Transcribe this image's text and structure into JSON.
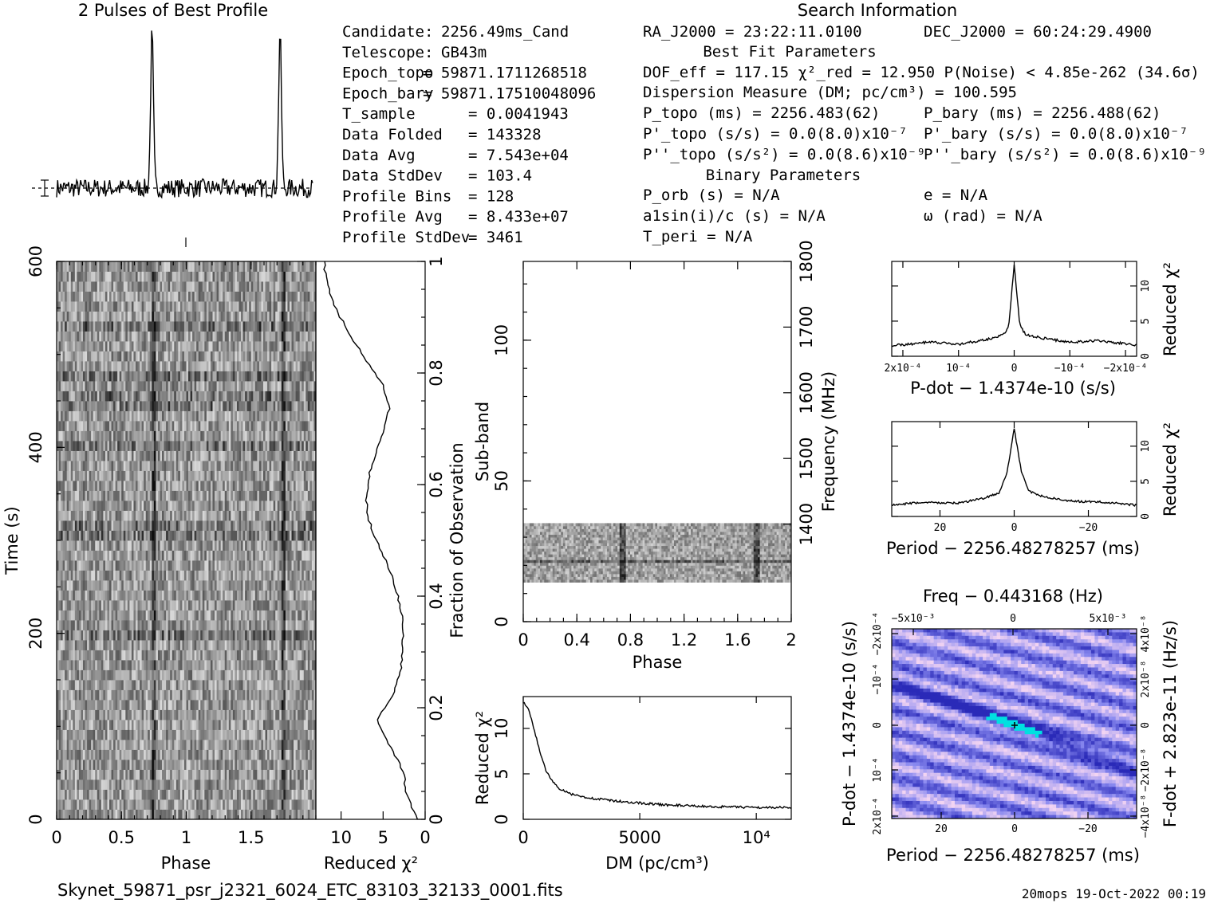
{
  "titles": {
    "profile_title": "2 Pulses of Best Profile",
    "search_title": "Search Information"
  },
  "candidate_info": [
    {
      "label": "Candidate:",
      "value": "2256.49ms_Cand"
    },
    {
      "label": "Telescope:",
      "value": "GB43m"
    },
    {
      "label": "Epoch_topo",
      "value": "= 59871.1711268518"
    },
    {
      "label": "Epoch_bary",
      "value": "= 59871.17510048096"
    },
    {
      "label": "T_sample",
      "value": "=  0.0041943"
    },
    {
      "label": "Data Folded",
      "value": "=  143328"
    },
    {
      "label": "Data Avg",
      "value": "=  7.543e+04"
    },
    {
      "label": "Data StdDev",
      "value": "=  103.4"
    },
    {
      "label": "Profile Bins",
      "value": "=  128"
    },
    {
      "label": "Profile Avg",
      "value": "=  8.433e+07"
    },
    {
      "label": "Profile StdDev",
      "value": "=  3461"
    }
  ],
  "search_info": {
    "ra": "RA_J2000 = 23:22:11.0100",
    "dec": "DEC_J2000 = 60:24:29.4900",
    "best_fit_header": "Best Fit Parameters",
    "dof": "DOF_eff = 117.15  χ²_red = 12.950  P(Noise) < 4.85e-262  (34.6σ)",
    "dm": "Dispersion Measure (DM; pc/cm³) = 100.595",
    "p_topo": "P_topo (ms) =  2256.483(62)",
    "p_bary": "P_bary (ms) =  2256.488(62)",
    "pd_topo": "P'_topo (s/s) = 0.0(8.0)x10⁻⁷",
    "pd_bary": "P'_bary (s/s) = 0.0(8.0)x10⁻⁷",
    "pdd_topo": "P''_topo (s/s²) = 0.0(8.6)x10⁻⁹",
    "pdd_bary": "P''_bary (s/s²) = 0.0(8.6)x10⁻⁹",
    "binary_header": "Binary Parameters",
    "p_orb": "P_orb (s) = N/A",
    "e": "e = N/A",
    "a1sini": "a1sin(i)/c (s) = N/A",
    "omega": "ω (rad) = N/A",
    "t_peri": "T_peri = N/A"
  },
  "footer": {
    "filename": "Skynet_59871_psr_j2321_6024_ETC_83103_32133_0001.fits",
    "stamp": "20mops 19-Oct-2022 00:19"
  },
  "colors": {
    "pd_low": "#2a2ab8",
    "pd_mid": "#8a8af0",
    "pd_high": "#f2d4f2",
    "pd_peak": "#00e0e0"
  },
  "chart_data": [
    {
      "id": "profile",
      "type": "line",
      "title": "2 Pulses of Best Profile",
      "x_range": [
        0,
        2
      ],
      "peak_phases": [
        0.745,
        1.745
      ],
      "peak_height": 1.0,
      "noise_level": 0.06
    },
    {
      "id": "time_phase",
      "type": "heatmap",
      "xlabel": "Phase",
      "ylabel": "Time (s)",
      "xlim": [
        0,
        2
      ],
      "ylim": [
        0,
        600
      ],
      "xticks": [
        "0",
        "0.5",
        "1",
        "1.5"
      ],
      "yticks": [
        "0",
        "200",
        "400",
        "600"
      ],
      "pulse_phases": [
        0.745,
        1.745
      ]
    },
    {
      "id": "time_chi2",
      "type": "line",
      "xlabel": "Reduced χ²",
      "ylabel": "Fraction of Observation",
      "xticks": [
        "10",
        "5",
        "0"
      ],
      "yticks": [
        "0",
        "0.2",
        "0.4",
        "0.6",
        "0.8",
        "1"
      ],
      "xlim": [
        13,
        0
      ],
      "ylim": [
        0,
        1
      ],
      "fraction": [
        0.0,
        0.02,
        0.05,
        0.08,
        0.1,
        0.14,
        0.18,
        0.22,
        0.26,
        0.3,
        0.34,
        0.38,
        0.42,
        0.46,
        0.5,
        0.54,
        0.58,
        0.62,
        0.66,
        0.7,
        0.74,
        0.78,
        0.82,
        0.86,
        0.9,
        0.93,
        0.96,
        0.98,
        1.0
      ],
      "chi2": [
        0.9,
        1.6,
        2.3,
        2.5,
        3.0,
        4.6,
        5.8,
        3.9,
        3.0,
        2.7,
        2.6,
        2.9,
        3.6,
        4.6,
        5.8,
        6.8,
        7.0,
        6.6,
        5.8,
        4.8,
        4.2,
        5.1,
        6.9,
        8.6,
        10.1,
        11.1,
        11.6,
        11.9,
        12.0
      ]
    },
    {
      "id": "subband",
      "type": "heatmap",
      "xlabel": "Phase",
      "ylabel": "Sub-band",
      "ylabel_right": "Frequency (MHz)",
      "xlim": [
        0,
        2
      ],
      "ylim": [
        0,
        128
      ],
      "xticks": [
        "0",
        "0.4",
        "0.8",
        "1.2",
        "1.6",
        "2"
      ],
      "yticks": [
        "0",
        "50",
        "100"
      ],
      "yticks_right": [
        "1400",
        "1500",
        "1600",
        "1700",
        "1800"
      ],
      "band_range": [
        14,
        35
      ],
      "pulse_phases": [
        0.745,
        1.745
      ]
    },
    {
      "id": "dm_curve",
      "type": "line",
      "xlabel": "DM (pc/cm³)",
      "ylabel": "Reduced χ²",
      "xlim": [
        0,
        11500
      ],
      "ylim": [
        0,
        13.5
      ],
      "xticks": [
        "0",
        "5000",
        "10⁴"
      ],
      "yticks": [
        "0",
        "5",
        "10"
      ],
      "x": [
        0,
        200,
        400,
        600,
        800,
        1000,
        1300,
        1600,
        2000,
        2500,
        3000,
        4000,
        5000,
        6000,
        7000,
        8000,
        9000,
        10000,
        11500
      ],
      "y": [
        12.9,
        12.2,
        10.6,
        8.6,
        6.7,
        5.2,
        4.0,
        3.3,
        2.8,
        2.5,
        2.3,
        2.0,
        1.8,
        1.6,
        1.5,
        1.4,
        1.35,
        1.3,
        1.3
      ]
    },
    {
      "id": "pdot_curve",
      "type": "line",
      "xlabel": "P-dot − 1.4374e-10 (s/s)",
      "ylabel": "Reduced χ²",
      "xlim": [
        0.00022,
        -0.00022
      ],
      "ylim": [
        0,
        13.5
      ],
      "xticks": [
        "2x10⁻⁴",
        "10⁻⁴",
        "0",
        "−10⁻⁴",
        "−2x10⁻⁴"
      ],
      "yticks": [
        "0",
        "5",
        "10"
      ],
      "x": [
        0.00022,
        0.00015,
        0.0001,
        5e-05,
        2e-05,
        1e-05,
        0.0,
        -1e-05,
        -2e-05,
        -5e-05,
        -0.0001,
        -0.00015,
        -0.00022
      ],
      "y": [
        1.5,
        2.0,
        1.7,
        2.4,
        3.0,
        4.2,
        13.0,
        4.5,
        3.1,
        2.6,
        2.0,
        2.2,
        1.6
      ]
    },
    {
      "id": "period_curve",
      "type": "line",
      "xlabel": "Period − 2256.48278257 (ms)",
      "ylabel": "Reduced χ²",
      "xlim": [
        33,
        -33
      ],
      "ylim": [
        0,
        13.5
      ],
      "xticks": [
        "20",
        "0",
        "−20"
      ],
      "yticks": [
        "0",
        "5",
        "10"
      ],
      "x": [
        33,
        25,
        15,
        8,
        4,
        2,
        0,
        -2,
        -4,
        -8,
        -15,
        -25,
        -33
      ],
      "y": [
        1.6,
        2.0,
        1.9,
        2.6,
        3.4,
        6.0,
        12.5,
        6.2,
        3.6,
        2.8,
        2.2,
        2.0,
        1.6
      ]
    },
    {
      "id": "pp_dot",
      "type": "heatmap",
      "title": "Freq − 0.443168 (Hz)",
      "xlabel": "Period − 2256.48278257 (ms)",
      "ylabel": "P-dot − 1.4374e-10 (s/s)",
      "ylabel_right": "F-dot + 2.823e-11 (Hz/s)",
      "xticks": [
        "20",
        "0",
        "−20"
      ],
      "top_ticks": [
        "−5x10⁻³",
        "0",
        "5x10⁻³"
      ],
      "yticks": [
        "2x10⁻⁴",
        "10⁻⁴",
        "0",
        "−10⁻⁴",
        "−2x10⁻⁴"
      ],
      "right_ticks": [
        "−4x10⁻⁸",
        "−2x10⁻⁸",
        "0",
        "2x10⁻⁸",
        "4x10⁻⁸"
      ]
    }
  ]
}
